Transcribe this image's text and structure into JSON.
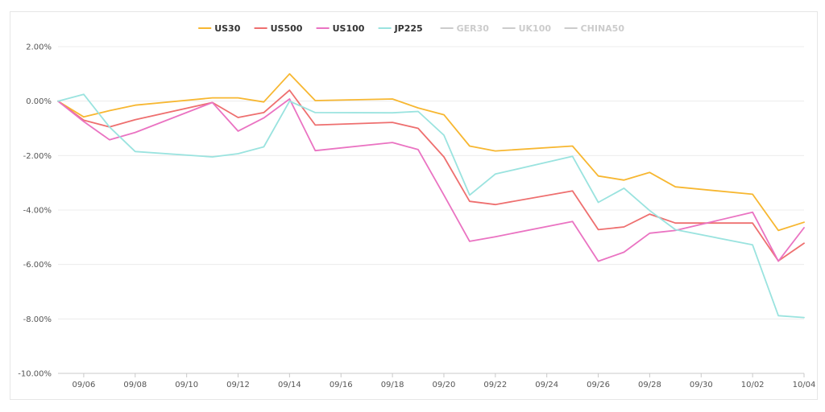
{
  "chart_data": {
    "type": "line",
    "title": "",
    "xlabel": "",
    "ylabel": "",
    "x": [
      "09/05",
      "09/06",
      "09/07",
      "09/08",
      "09/11",
      "09/12",
      "09/13",
      "09/14",
      "09/15",
      "09/18",
      "09/19",
      "09/20",
      "09/21",
      "09/22",
      "09/25",
      "09/26",
      "09/27",
      "09/28",
      "09/29",
      "10/02",
      "10/03",
      "10/04"
    ],
    "x_tick_labels": [
      "09/06",
      "09/08",
      "09/10",
      "09/12",
      "09/14",
      "09/16",
      "09/18",
      "09/20",
      "09/22",
      "09/24",
      "09/26",
      "09/28",
      "09/30",
      "10/02",
      "10/04"
    ],
    "x_range": [
      "09/05",
      "10/04"
    ],
    "ylim": [
      -10,
      2
    ],
    "y_ticks": [
      2,
      0,
      -2,
      -4,
      -6,
      -8,
      -10
    ],
    "y_tick_labels": [
      "2.00%",
      "0.00%",
      "-2.00%",
      "-4.00%",
      "-6.00%",
      "-8.00%",
      "-10.00%"
    ],
    "grid": true,
    "legend_position": "top-center",
    "legend": [
      {
        "name": "US30",
        "color": "#f7b731",
        "active": true
      },
      {
        "name": "US500",
        "color": "#ee6f6f",
        "active": true
      },
      {
        "name": "US100",
        "color": "#ea73c2",
        "active": true
      },
      {
        "name": "JP225",
        "color": "#9ae3df",
        "active": true
      },
      {
        "name": "GER30",
        "color": "#cccccc",
        "active": false
      },
      {
        "name": "UK100",
        "color": "#cccccc",
        "active": false
      },
      {
        "name": "CHINA50",
        "color": "#cccccc",
        "active": false
      }
    ],
    "series": [
      {
        "name": "US30",
        "color": "#f7b731",
        "values": [
          0,
          -0.58,
          -0.35,
          -0.15,
          0.12,
          0.12,
          -0.03,
          1.0,
          0.02,
          0.08,
          -0.25,
          -0.5,
          -1.65,
          -1.83,
          -1.65,
          -2.75,
          -2.9,
          -2.62,
          -3.15,
          -3.42,
          -4.75,
          -4.45
        ]
      },
      {
        "name": "US500",
        "color": "#ee6f6f",
        "values": [
          0,
          -0.7,
          -0.95,
          -0.68,
          -0.05,
          -0.6,
          -0.42,
          0.4,
          -0.88,
          -0.78,
          -1.0,
          -2.05,
          -3.68,
          -3.8,
          -3.3,
          -4.72,
          -4.62,
          -4.15,
          -4.48,
          -4.48,
          -5.87,
          -5.22
        ]
      },
      {
        "name": "US100",
        "color": "#ea73c2",
        "values": [
          0,
          -0.75,
          -1.42,
          -1.15,
          -0.05,
          -1.1,
          -0.62,
          0.08,
          -1.82,
          -1.52,
          -1.78,
          -3.45,
          -5.15,
          -4.98,
          -4.42,
          -5.88,
          -5.55,
          -4.85,
          -4.75,
          -4.08,
          -5.88,
          -4.65
        ]
      },
      {
        "name": "JP225",
        "color": "#9ae3df",
        "values": [
          0,
          0.25,
          -0.95,
          -1.85,
          -2.05,
          -1.93,
          -1.68,
          0.0,
          -0.42,
          -0.43,
          -0.38,
          -1.25,
          -3.45,
          -2.68,
          -2.03,
          -3.72,
          -3.2,
          -4.02,
          -4.72,
          -5.28,
          -7.88,
          -7.95
        ]
      }
    ]
  }
}
